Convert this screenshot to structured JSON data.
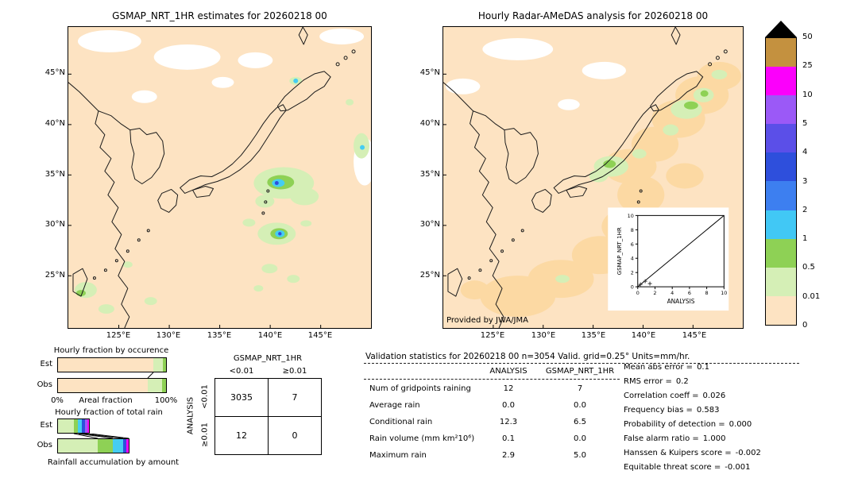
{
  "left_map": {
    "title": "GSMAP_NRT_1HR estimates for 20260218 00"
  },
  "right_map": {
    "title": "Hourly Radar-AMeDAS analysis for 20260218 00",
    "credit": "Provided by JWA/JMA",
    "inset": {
      "xlabel": "ANALYSIS",
      "ylabel": "GSMAP_NRT_1HR",
      "ticks": [
        "0",
        "2",
        "4",
        "6",
        "8",
        "10"
      ]
    }
  },
  "geo": {
    "lat_ticks": [
      "45°N",
      "40°N",
      "35°N",
      "30°N",
      "25°N"
    ],
    "lon_ticks": [
      "125°E",
      "130°E",
      "135°E",
      "140°E",
      "145°E"
    ]
  },
  "colorbar": {
    "tick_labels": [
      "50",
      "25",
      "10",
      "5",
      "4",
      "3",
      "2",
      "1",
      "0.5",
      "0.01",
      "0"
    ],
    "segment_colors": [
      "#c4913f",
      "#fb00fb",
      "#9b59f7",
      "#5b4fe8",
      "#2e4fdc",
      "#3d7ff0",
      "#41c8f5",
      "#8ed155",
      "#d5efb6",
      "#fde3c2"
    ],
    "arrow_color": "#000000"
  },
  "occurrence_chart": {
    "title": "Hourly fraction by occurence",
    "row_labels": [
      "Est",
      "Obs"
    ],
    "x_left": "0%",
    "x_center": "Areal fraction",
    "x_right": "100%",
    "est_segments": [
      {
        "color": "#fde3c2",
        "pct": 88
      },
      {
        "color": "#d5efb6",
        "pct": 9
      },
      {
        "color": "#8ed155",
        "pct": 3
      }
    ],
    "obs_segments": [
      {
        "color": "#fde3c2",
        "pct": 83
      },
      {
        "color": "#d5efb6",
        "pct": 13
      },
      {
        "color": "#8ed155",
        "pct": 4
      }
    ]
  },
  "totalrain_chart": {
    "title": "Hourly fraction of total rain",
    "row_labels": [
      "Est",
      "Obs"
    ],
    "caption": "Rainfall accumulation by amount",
    "est_total_pct": 30,
    "obs_total_pct": 66,
    "est_segments": [
      {
        "color": "#d5efb6",
        "pct": 50
      },
      {
        "color": "#8ed155",
        "pct": 14
      },
      {
        "color": "#45cdf2",
        "pct": 12
      },
      {
        "color": "#2e4fdc",
        "pct": 10
      },
      {
        "color": "#9b59f7",
        "pct": 7
      },
      {
        "color": "#fb00fb",
        "pct": 7
      }
    ],
    "obs_segments": [
      {
        "color": "#d5efb6",
        "pct": 56
      },
      {
        "color": "#8ed155",
        "pct": 22
      },
      {
        "color": "#45cdf2",
        "pct": 14
      },
      {
        "color": "#2e4fdc",
        "pct": 4
      },
      {
        "color": "#fb00fb",
        "pct": 4
      }
    ]
  },
  "contingency": {
    "group_col": "GSMAP_NRT_1HR",
    "col_headers": [
      "<0.01",
      "≥0.01"
    ],
    "group_row": "ANALYSIS",
    "row_headers": [
      "<0.01",
      "≥0.01"
    ],
    "values": [
      [
        "3035",
        "7"
      ],
      [
        "12",
        "0"
      ]
    ]
  },
  "stats": {
    "title": "Validation statistics for 20260218 00  n=3054 Valid. grid=0.25° Units=mm/hr.",
    "col_headers": [
      "ANALYSIS",
      "GSMAP_NRT_1HR"
    ],
    "rows": [
      {
        "label": "Num of gridpoints raining",
        "analysis": "12",
        "gsmap": "7"
      },
      {
        "label": "Average rain",
        "analysis": "0.0",
        "gsmap": "0.0"
      },
      {
        "label": "Conditional rain",
        "analysis": "12.3",
        "gsmap": "6.5"
      },
      {
        "label": "Rain volume (mm km²10⁶)",
        "analysis": "0.1",
        "gsmap": "0.0"
      },
      {
        "label": "Maximum rain",
        "analysis": "2.9",
        "gsmap": "5.0"
      }
    ],
    "metrics": [
      {
        "label": "Mean abs error =",
        "value": "0.1"
      },
      {
        "label": "RMS error =",
        "value": "0.2"
      },
      {
        "label": "Correlation coeff =",
        "value": "0.026"
      },
      {
        "label": "Frequency bias =",
        "value": "0.583"
      },
      {
        "label": "Probability of detection =",
        "value": "0.000"
      },
      {
        "label": "False alarm ratio =",
        "value": "1.000"
      },
      {
        "label": "Hanssen & Kuipers score =",
        "value": "-0.002"
      },
      {
        "label": "Equitable threat score =",
        "value": "-0.001"
      }
    ]
  },
  "chart_data": [
    {
      "type": "heatmap",
      "title": "GSMAP_NRT_1HR estimates for 20260218 00",
      "units": "mm/hr",
      "lon_ticks": [
        125,
        130,
        135,
        140,
        145
      ],
      "lat_ticks": [
        45,
        40,
        35,
        30,
        25
      ],
      "color_levels": [
        0,
        0.01,
        0.5,
        1,
        2,
        3,
        4,
        5,
        10,
        25,
        50
      ],
      "notes": "light rain cells near 139-143E/33-35N and 140E/28-29N with 1-5 mm/hr cores, weak rain near Taiwan; maximum 5.0 mm/hr"
    },
    {
      "type": "heatmap",
      "title": "Hourly Radar-AMeDAS analysis for 20260218 00",
      "units": "mm/hr",
      "lon_ticks": [
        125,
        130,
        135,
        140,
        145
      ],
      "lat_ticks": [
        45,
        40,
        35,
        30,
        25
      ],
      "color_levels": [
        0,
        0.01,
        0.5,
        1,
        2,
        3,
        4,
        5,
        10,
        25,
        50
      ],
      "notes": "weak trace-rain band from Okinawa along Pacific side of Japan to Tohoku/Hokkaido; maximum 2.9 mm/hr"
    },
    {
      "type": "scatter",
      "xlabel": "ANALYSIS",
      "ylabel": "GSMAP_NRT_1HR",
      "xlim": [
        0,
        10
      ],
      "ylim": [
        0,
        10
      ],
      "xticks": [
        0,
        2,
        4,
        6,
        8,
        10
      ],
      "yticks": [
        0,
        2,
        4,
        6,
        8,
        10
      ],
      "reference_line": "y=x",
      "notes": "few points clustered below 2 mm/hr near origin"
    },
    {
      "type": "table",
      "title": "Contingency table GSMAP_NRT_1HR vs ANALYSIS",
      "columns": [
        "<0.01",
        "≥0.01"
      ],
      "rows": [
        "<0.01",
        "≥0.01"
      ],
      "values": [
        [
          3035,
          7
        ],
        [
          12,
          0
        ]
      ]
    },
    {
      "type": "table",
      "title": "Validation statistics for 20260218 00",
      "n": 3054,
      "grid": "0.25°",
      "units": "mm/hr",
      "columns": [
        "ANALYSIS",
        "GSMAP_NRT_1HR"
      ],
      "rows": [
        [
          "Num of gridpoints raining",
          12,
          7
        ],
        [
          "Average rain",
          0.0,
          0.0
        ],
        [
          "Conditional rain",
          12.3,
          6.5
        ],
        [
          "Rain volume (mm km²10⁶)",
          0.1,
          0.0
        ],
        [
          "Maximum rain",
          2.9,
          5.0
        ]
      ],
      "metrics": {
        "Mean abs error": 0.1,
        "RMS error": 0.2,
        "Correlation coeff": 0.026,
        "Frequency bias": 0.583,
        "Probability of detection": 0.0,
        "False alarm ratio": 1.0,
        "Hanssen & Kuipers score": -0.002,
        "Equitable threat score": -0.001
      }
    },
    {
      "type": "bar",
      "title": "Hourly fraction by occurence",
      "categories": [
        "Est",
        "Obs"
      ],
      "xlabel": "Areal fraction",
      "xlim_pct": [
        0,
        100
      ],
      "series": [
        {
          "name": "below 0.01",
          "values": [
            88,
            83
          ]
        },
        {
          "name": "0.01-0.5",
          "values": [
            9,
            13
          ]
        },
        {
          "name": "0.5-1",
          "values": [
            3,
            4
          ]
        }
      ]
    },
    {
      "type": "bar",
      "title": "Hourly fraction of total rain",
      "categories": [
        "Est",
        "Obs"
      ],
      "xlabel": "Rainfall accumulation by amount",
      "notes": "stacked by intensity class; Est extends to about 30% of axis, Obs to about 66%"
    }
  ]
}
